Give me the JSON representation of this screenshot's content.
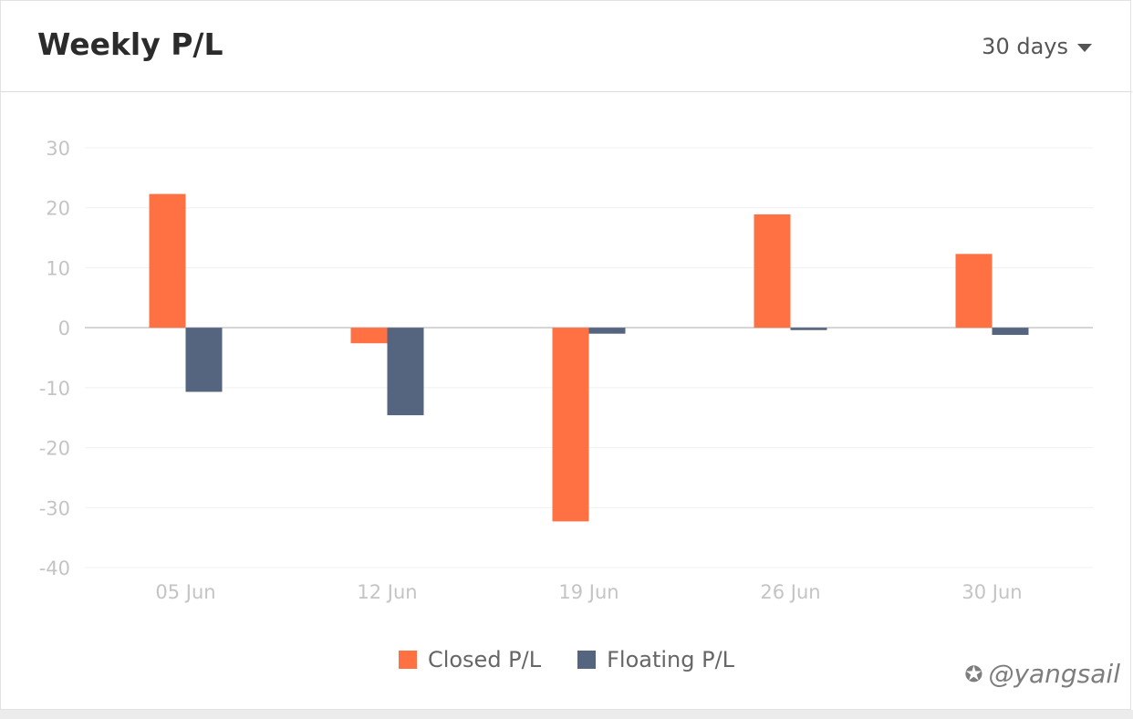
{
  "header": {
    "title": "Weekly P/L",
    "range_label": "30 days"
  },
  "chart_data": {
    "type": "bar",
    "categories": [
      "05 Jun",
      "12 Jun",
      "19 Jun",
      "26 Jun",
      "30 Jun"
    ],
    "series": [
      {
        "name": "Closed P/L",
        "color": "#ff7043",
        "values": [
          22.3,
          -2.6,
          -32.3,
          18.9,
          12.3
        ]
      },
      {
        "name": "Floating P/L",
        "color": "#56657f",
        "values": [
          -10.7,
          -14.6,
          -1.0,
          -0.4,
          -1.2
        ]
      }
    ],
    "yticks": [
      30,
      20,
      10,
      0,
      -10,
      -20,
      -30,
      -40
    ],
    "ylim": [
      -40,
      30
    ],
    "grid": true,
    "legend_position": "bottom"
  },
  "watermark": {
    "text": "@yangsail"
  }
}
